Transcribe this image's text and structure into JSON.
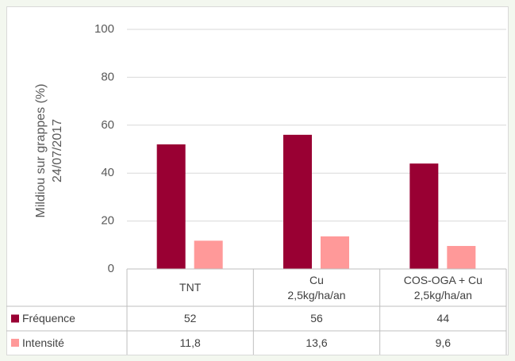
{
  "chart_data": {
    "type": "bar",
    "y_label": "Mildiou sur grappes (%)\n24/07/2017",
    "categories": [
      "TNT",
      "Cu\n2,5kg/ha/an",
      "COS-OGA + Cu\n2,5kg/ha/an"
    ],
    "series": [
      {
        "name": "Fréquence",
        "color": "#990033",
        "values": [
          52,
          56,
          44
        ]
      },
      {
        "name": "Intensité",
        "color": "#ff9999",
        "values": [
          11.8,
          13.6,
          9.6
        ],
        "value_labels": [
          "11,8",
          "13,6",
          "9,6"
        ]
      }
    ],
    "ylim": [
      0,
      100
    ],
    "yticks": [
      0,
      20,
      40,
      60,
      80,
      100
    ],
    "grid": true
  }
}
